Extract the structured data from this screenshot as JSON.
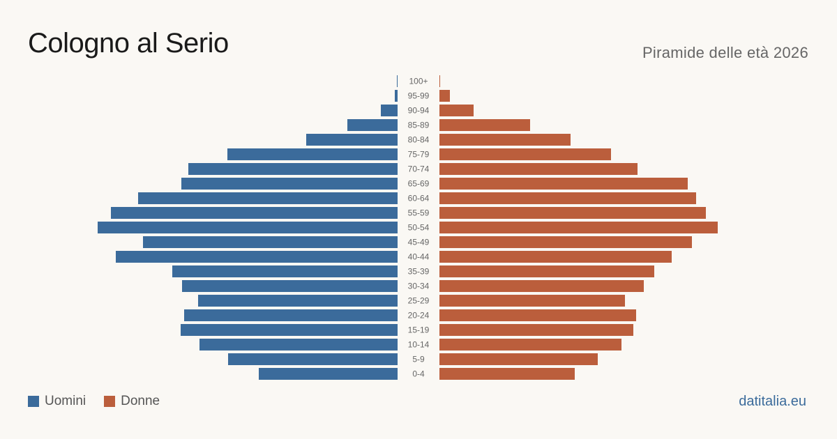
{
  "title": "Cologno al Serio",
  "subtitle": "Piramide delle età 2026",
  "footer": "datitalia.eu",
  "colors": {
    "men": "#3b6b9b",
    "women": "#bb5e3c",
    "background": "#faf8f4"
  },
  "chart_data": {
    "type": "bar",
    "orientation": "horizontal-population-pyramid",
    "categories": [
      "100+",
      "95-99",
      "90-94",
      "85-89",
      "80-84",
      "75-79",
      "70-74",
      "65-69",
      "60-64",
      "55-59",
      "50-54",
      "45-49",
      "40-44",
      "35-39",
      "30-34",
      "25-29",
      "20-24",
      "15-19",
      "10-14",
      "5-9",
      "0-4"
    ],
    "series": [
      {
        "name": "Uomini",
        "values": [
          1,
          4,
          24,
          72,
          131,
          244,
          300,
          310,
          372,
          411,
          430,
          365,
          404,
          323,
          309,
          286,
          306,
          311,
          284,
          243,
          199
        ]
      },
      {
        "name": "Donne",
        "values": [
          1,
          15,
          49,
          130,
          188,
          246,
          284,
          356,
          368,
          382,
          399,
          362,
          333,
          308,
          293,
          266,
          282,
          278,
          261,
          227,
          194
        ]
      }
    ],
    "grid": false,
    "legend": "bottom-left"
  }
}
